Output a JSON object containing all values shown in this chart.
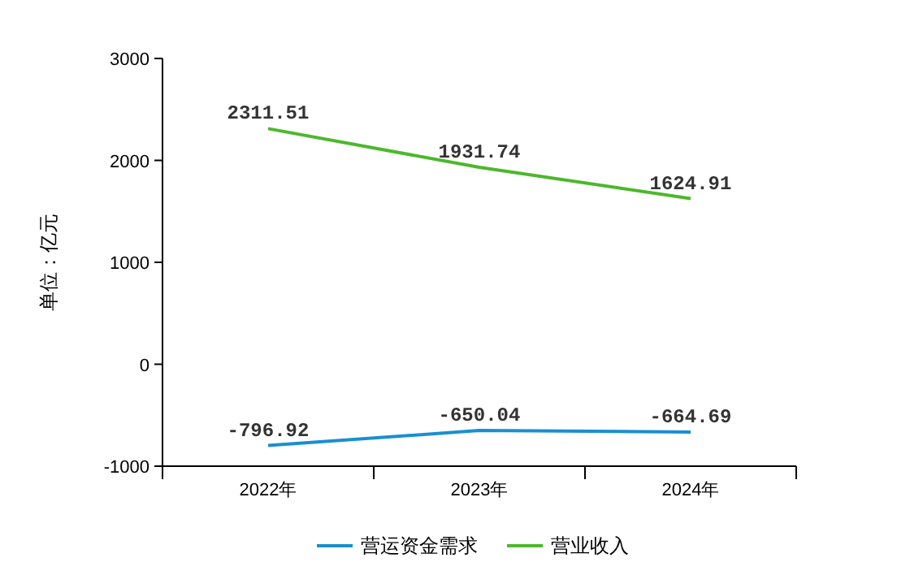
{
  "chart_data": {
    "type": "line",
    "ylabel": "单位：亿元",
    "categories": [
      "2022年",
      "2023年",
      "2024年"
    ],
    "series": [
      {
        "name": "营运资金需求",
        "color": "#1a8fd0",
        "values": [
          -796.92,
          -650.04,
          -664.69
        ]
      },
      {
        "name": "营业收入",
        "color": "#4cb82c",
        "values": [
          2311.51,
          1931.74,
          1624.91
        ]
      }
    ],
    "ylim": [
      -1000,
      3000
    ],
    "yticks": [
      -1000,
      0,
      1000,
      2000,
      3000
    ],
    "data_labels": true,
    "legend": "bottom",
    "grid": false,
    "marker": "none",
    "line_style": "solid"
  }
}
